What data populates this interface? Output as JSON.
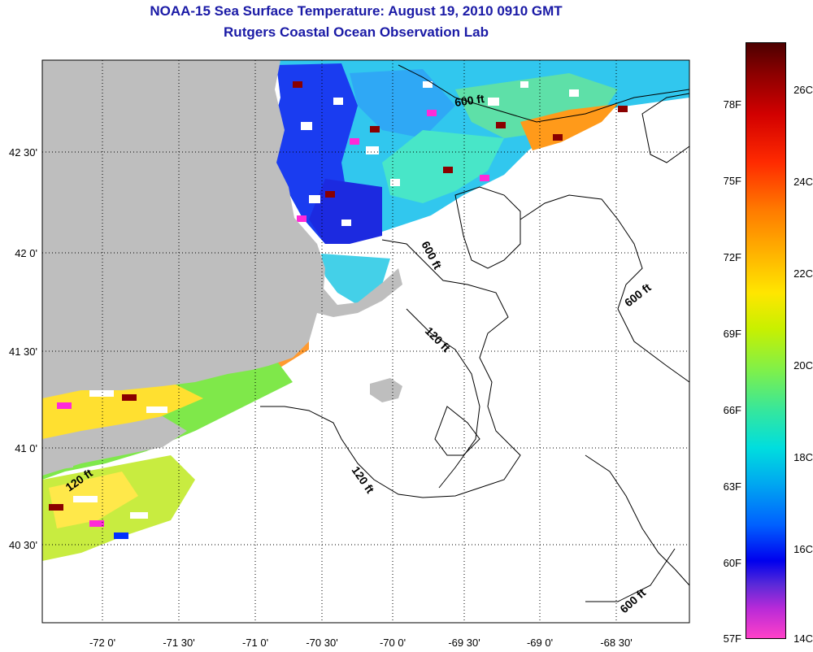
{
  "title": {
    "line1": "NOAA-15 Sea Surface Temperature:  August 19, 2010 0910 GMT",
    "line2": "Rutgers Coastal Ocean Observation Lab"
  },
  "map": {
    "lon_labels": [
      "-72 0'",
      "-71 30'",
      "-71 0'",
      "-70 30'",
      "-70 0'",
      "-69 30'",
      "-69 0'",
      "-68 30'"
    ],
    "lat_labels": [
      "42 30'",
      "42 0'",
      "41 30'",
      "41 0'",
      "40 30'"
    ],
    "contour_labels": [
      "600 ft",
      "600 ft",
      "600 ft",
      "120 ft",
      "120 ft",
      "120 ft",
      "600 ft"
    ],
    "land_color": "#bebebe"
  },
  "colorbar": {
    "fahrenheit": [
      "78F",
      "75F",
      "72F",
      "69F",
      "66F",
      "63F",
      "60F",
      "57F"
    ],
    "celsius": [
      "26C",
      "24C",
      "22C",
      "20C",
      "18C",
      "16C",
      "14C"
    ],
    "range_f": [
      57,
      80
    ],
    "range_c": [
      14,
      27
    ]
  }
}
